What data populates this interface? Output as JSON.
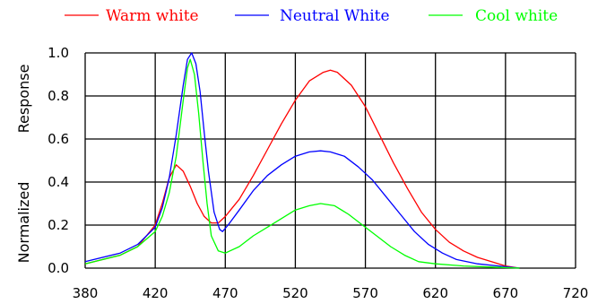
{
  "chart_data": {
    "type": "line",
    "title": "",
    "xlabel": "",
    "ylabel_parts": [
      "Normalized",
      "Response"
    ],
    "xlim": [
      380,
      720
    ],
    "ylim": [
      0,
      1.0
    ],
    "grid": true,
    "legend_placement": "top",
    "x_ticks": [
      380,
      420,
      470,
      520,
      570,
      620,
      670,
      720
    ],
    "y_ticks": [
      "0.0",
      "0.2",
      "0.4",
      "0.6",
      "0.8",
      "1.0"
    ],
    "series": [
      {
        "name": "Warm white",
        "color": "#ff0000",
        "points": [
          [
            380,
            0.02
          ],
          [
            400,
            0.06
          ],
          [
            410,
            0.1
          ],
          [
            420,
            0.2
          ],
          [
            425,
            0.3
          ],
          [
            430,
            0.42
          ],
          [
            435,
            0.48
          ],
          [
            440,
            0.45
          ],
          [
            445,
            0.38
          ],
          [
            450,
            0.3
          ],
          [
            455,
            0.24
          ],
          [
            460,
            0.21
          ],
          [
            465,
            0.21
          ],
          [
            470,
            0.24
          ],
          [
            480,
            0.32
          ],
          [
            490,
            0.43
          ],
          [
            500,
            0.55
          ],
          [
            510,
            0.67
          ],
          [
            520,
            0.78
          ],
          [
            530,
            0.87
          ],
          [
            540,
            0.91
          ],
          [
            545,
            0.92
          ],
          [
            550,
            0.91
          ],
          [
            560,
            0.85
          ],
          [
            570,
            0.75
          ],
          [
            580,
            0.62
          ],
          [
            590,
            0.49
          ],
          [
            600,
            0.37
          ],
          [
            610,
            0.26
          ],
          [
            620,
            0.18
          ],
          [
            630,
            0.12
          ],
          [
            640,
            0.08
          ],
          [
            650,
            0.05
          ],
          [
            660,
            0.03
          ],
          [
            670,
            0.01
          ],
          [
            680,
            0.0
          ]
        ]
      },
      {
        "name": "Neutral White",
        "color": "#0000ff",
        "points": [
          [
            380,
            0.03
          ],
          [
            400,
            0.07
          ],
          [
            410,
            0.11
          ],
          [
            420,
            0.19
          ],
          [
            425,
            0.28
          ],
          [
            430,
            0.42
          ],
          [
            435,
            0.62
          ],
          [
            440,
            0.85
          ],
          [
            443,
            0.97
          ],
          [
            446,
            1.0
          ],
          [
            449,
            0.95
          ],
          [
            452,
            0.82
          ],
          [
            455,
            0.63
          ],
          [
            458,
            0.45
          ],
          [
            462,
            0.26
          ],
          [
            466,
            0.18
          ],
          [
            468,
            0.17
          ],
          [
            472,
            0.2
          ],
          [
            480,
            0.27
          ],
          [
            490,
            0.36
          ],
          [
            500,
            0.43
          ],
          [
            510,
            0.48
          ],
          [
            520,
            0.52
          ],
          [
            530,
            0.54
          ],
          [
            538,
            0.545
          ],
          [
            545,
            0.54
          ],
          [
            555,
            0.52
          ],
          [
            565,
            0.47
          ],
          [
            575,
            0.41
          ],
          [
            585,
            0.33
          ],
          [
            595,
            0.25
          ],
          [
            605,
            0.17
          ],
          [
            615,
            0.11
          ],
          [
            625,
            0.07
          ],
          [
            635,
            0.04
          ],
          [
            650,
            0.02
          ],
          [
            665,
            0.01
          ],
          [
            680,
            0.0
          ]
        ]
      },
      {
        "name": "Cool white",
        "color": "#00ff00",
        "points": [
          [
            380,
            0.02
          ],
          [
            400,
            0.06
          ],
          [
            410,
            0.1
          ],
          [
            420,
            0.17
          ],
          [
            425,
            0.24
          ],
          [
            430,
            0.35
          ],
          [
            435,
            0.52
          ],
          [
            440,
            0.78
          ],
          [
            443,
            0.93
          ],
          [
            445,
            0.97
          ],
          [
            448,
            0.9
          ],
          [
            451,
            0.72
          ],
          [
            454,
            0.5
          ],
          [
            457,
            0.3
          ],
          [
            460,
            0.15
          ],
          [
            465,
            0.08
          ],
          [
            470,
            0.07
          ],
          [
            480,
            0.1
          ],
          [
            490,
            0.15
          ],
          [
            500,
            0.19
          ],
          [
            510,
            0.23
          ],
          [
            520,
            0.27
          ],
          [
            530,
            0.29
          ],
          [
            538,
            0.3
          ],
          [
            548,
            0.29
          ],
          [
            558,
            0.25
          ],
          [
            568,
            0.2
          ],
          [
            578,
            0.15
          ],
          [
            588,
            0.1
          ],
          [
            598,
            0.06
          ],
          [
            608,
            0.03
          ],
          [
            620,
            0.02
          ],
          [
            640,
            0.01
          ],
          [
            660,
            0.005
          ],
          [
            680,
            0.0
          ]
        ]
      }
    ]
  }
}
